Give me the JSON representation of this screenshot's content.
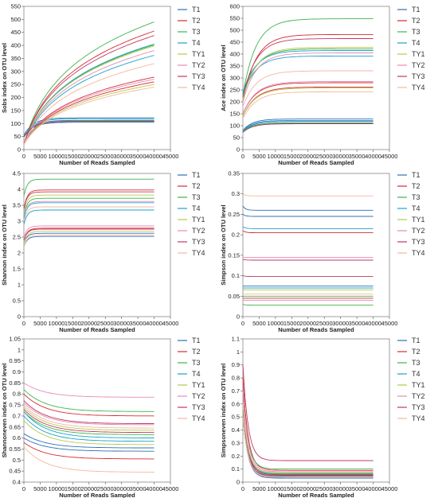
{
  "series_names": [
    "T1",
    "T2",
    "T3",
    "T4",
    "TY1",
    "TY2",
    "TY3",
    "TY4"
  ],
  "series_colors": [
    "#2f6fb5",
    "#d62a33",
    "#3cb54a",
    "#1aa3c8",
    "#b6c94a",
    "#e58ab9",
    "#c0395f",
    "#f4b7a0"
  ],
  "chart_data": [
    {
      "type": "line",
      "xlabel": "Number of Reads Sampled",
      "ylabel": "Sobs index on OTU level",
      "xlim": [
        0,
        45000
      ],
      "ylim": [
        0,
        550
      ],
      "xticks": [
        0,
        5000,
        10000,
        15000,
        20000,
        25000,
        30000,
        35000,
        40000,
        45000
      ],
      "yticks": [
        0,
        50,
        100,
        150,
        200,
        250,
        300,
        350,
        400,
        450,
        500,
        550
      ],
      "x_end": 40000,
      "series": [
        {
          "name": "T1",
          "curves": [
            {
              "start": 55,
              "final": 122,
              "shape": "sat"
            },
            {
              "start": 50,
              "final": 112,
              "shape": "sat"
            },
            {
              "start": 48,
              "final": 105,
              "shape": "sat"
            }
          ]
        },
        {
          "name": "T2",
          "curves": [
            {
              "start": 20,
              "final": 455,
              "shape": "log"
            },
            {
              "start": 20,
              "final": 278,
              "shape": "log"
            },
            {
              "start": 20,
              "final": 260,
              "shape": "log"
            }
          ]
        },
        {
          "name": "T3",
          "curves": [
            {
              "start": 20,
              "final": 490,
              "shape": "log"
            },
            {
              "start": 20,
              "final": 402,
              "shape": "log"
            },
            {
              "start": 20,
              "final": 110,
              "shape": "sat"
            }
          ]
        },
        {
          "name": "T4",
          "curves": [
            {
              "start": 20,
              "final": 405,
              "shape": "log"
            },
            {
              "start": 20,
              "final": 362,
              "shape": "log"
            },
            {
              "start": 48,
              "final": 118,
              "shape": "sat"
            }
          ]
        },
        {
          "name": "TY1",
          "curves": [
            {
              "start": 20,
              "final": 398,
              "shape": "log"
            },
            {
              "start": 20,
              "final": 250,
              "shape": "log"
            }
          ]
        },
        {
          "name": "TY2",
          "curves": [
            {
              "start": 20,
              "final": 380,
              "shape": "log"
            },
            {
              "start": 20,
              "final": 270,
              "shape": "log"
            }
          ]
        },
        {
          "name": "TY3",
          "curves": [
            {
              "start": 20,
              "final": 438,
              "shape": "log"
            },
            {
              "start": 48,
              "final": 108,
              "shape": "sat"
            }
          ]
        },
        {
          "name": "TY4",
          "curves": [
            {
              "start": 20,
              "final": 330,
              "shape": "log"
            },
            {
              "start": 20,
              "final": 240,
              "shape": "log"
            }
          ]
        }
      ]
    },
    {
      "type": "line",
      "xlabel": "Number of Reads Sampled",
      "ylabel": "Ace index on OTU level",
      "xlim": [
        0,
        45000
      ],
      "ylim": [
        0,
        600
      ],
      "xticks": [
        0,
        5000,
        10000,
        15000,
        20000,
        25000,
        30000,
        35000,
        40000,
        45000
      ],
      "yticks": [
        0,
        50,
        100,
        150,
        200,
        250,
        300,
        350,
        400,
        450,
        500,
        550,
        600
      ],
      "x_end": 40000,
      "series": [
        {
          "name": "T1",
          "curves": [
            {
              "start": 80,
              "final": 128,
              "shape": "sat"
            },
            {
              "start": 75,
              "final": 118,
              "shape": "sat"
            },
            {
              "start": 72,
              "final": 110,
              "shape": "sat"
            }
          ]
        },
        {
          "name": "T2",
          "curves": [
            {
              "start": 200,
              "final": 482,
              "shape": "ace"
            },
            {
              "start": 150,
              "final": 280,
              "shape": "ace"
            },
            {
              "start": 140,
              "final": 262,
              "shape": "ace"
            }
          ]
        },
        {
          "name": "T3",
          "curves": [
            {
              "start": 230,
              "final": 548,
              "shape": "ace"
            },
            {
              "start": 220,
              "final": 422,
              "shape": "ace"
            },
            {
              "start": 75,
              "final": 112,
              "shape": "sat"
            }
          ]
        },
        {
          "name": "T4",
          "curves": [
            {
              "start": 240,
              "final": 415,
              "shape": "ace"
            },
            {
              "start": 230,
              "final": 392,
              "shape": "ace"
            },
            {
              "start": 78,
              "final": 122,
              "shape": "sat"
            }
          ]
        },
        {
          "name": "TY1",
          "curves": [
            {
              "start": 210,
              "final": 428,
              "shape": "ace"
            },
            {
              "start": 140,
              "final": 258,
              "shape": "ace"
            }
          ]
        },
        {
          "name": "TY2",
          "curves": [
            {
              "start": 200,
              "final": 405,
              "shape": "ace"
            },
            {
              "start": 150,
              "final": 285,
              "shape": "ace"
            }
          ]
        },
        {
          "name": "TY3",
          "curves": [
            {
              "start": 220,
              "final": 465,
              "shape": "ace"
            },
            {
              "start": 72,
              "final": 108,
              "shape": "sat"
            }
          ]
        },
        {
          "name": "TY4",
          "curves": [
            {
              "start": 180,
              "final": 330,
              "shape": "ace"
            },
            {
              "start": 130,
              "final": 242,
              "shape": "ace"
            }
          ]
        }
      ]
    },
    {
      "type": "line",
      "xlabel": "Number of Reads Sampled",
      "ylabel": "Shannon index on OTU level",
      "xlim": [
        0,
        45000
      ],
      "ylim": [
        0,
        4.5
      ],
      "xticks": [
        0,
        5000,
        10000,
        15000,
        20000,
        25000,
        30000,
        35000,
        40000,
        45000
      ],
      "yticks": [
        0,
        0.5,
        1,
        1.5,
        2,
        2.5,
        3,
        3.5,
        4,
        4.5
      ],
      "x_end": 40000,
      "series": [
        {
          "name": "T1",
          "curves": [
            {
              "start": 2.2,
              "final": 2.52,
              "shape": "fast"
            },
            {
              "start": 2.3,
              "final": 2.62,
              "shape": "fast"
            }
          ]
        },
        {
          "name": "T2",
          "curves": [
            {
              "start": 3.4,
              "final": 3.98,
              "shape": "fast"
            },
            {
              "start": 2.4,
              "final": 2.78,
              "shape": "fast"
            }
          ]
        },
        {
          "name": "T3",
          "curves": [
            {
              "start": 3.8,
              "final": 4.32,
              "shape": "fast"
            },
            {
              "start": 3.2,
              "final": 3.72,
              "shape": "fast"
            }
          ]
        },
        {
          "name": "T4",
          "curves": [
            {
              "start": 3.1,
              "final": 3.58,
              "shape": "fast"
            },
            {
              "start": 2.9,
              "final": 3.35,
              "shape": "fast"
            }
          ]
        },
        {
          "name": "TY1",
          "curves": [
            {
              "start": 3.3,
              "final": 3.82,
              "shape": "fast"
            },
            {
              "start": 2.3,
              "final": 2.68,
              "shape": "fast"
            }
          ]
        },
        {
          "name": "TY2",
          "curves": [
            {
              "start": 3.2,
              "final": 3.62,
              "shape": "fast"
            },
            {
              "start": 2.5,
              "final": 2.85,
              "shape": "fast"
            }
          ]
        },
        {
          "name": "TY3",
          "curves": [
            {
              "start": 3.4,
              "final": 3.92,
              "shape": "fast"
            },
            {
              "start": 2.4,
              "final": 2.75,
              "shape": "fast"
            }
          ]
        },
        {
          "name": "TY4",
          "curves": [
            {
              "start": 3.0,
              "final": 3.45,
              "shape": "fast"
            },
            {
              "start": 2.2,
              "final": 2.56,
              "shape": "fast"
            }
          ]
        }
      ]
    },
    {
      "type": "line",
      "xlabel": "Number of Reads Sampled",
      "ylabel": "Simpson index on OTU level",
      "xlim": [
        0,
        45000
      ],
      "ylim": [
        0,
        0.35
      ],
      "xticks": [
        0,
        5000,
        10000,
        15000,
        20000,
        25000,
        30000,
        35000,
        40000,
        45000
      ],
      "yticks": [
        0,
        0.05,
        0.1,
        0.15,
        0.2,
        0.25,
        0.3,
        0.35
      ],
      "x_end": 40000,
      "series": [
        {
          "name": "T1",
          "curves": [
            {
              "start": 0.27,
              "final": 0.26,
              "shape": "flat"
            },
            {
              "start": 0.25,
              "final": 0.245,
              "shape": "flat"
            },
            {
              "start": 0.075,
              "final": 0.075,
              "shape": "flat"
            }
          ]
        },
        {
          "name": "T2",
          "curves": [
            {
              "start": 0.21,
              "final": 0.205,
              "shape": "flat"
            },
            {
              "start": 0.045,
              "final": 0.045,
              "shape": "flat"
            }
          ]
        },
        {
          "name": "T3",
          "curves": [
            {
              "start": 0.03,
              "final": 0.028,
              "shape": "flat"
            },
            {
              "start": 0.05,
              "final": 0.05,
              "shape": "flat"
            }
          ]
        },
        {
          "name": "T4",
          "curves": [
            {
              "start": 0.22,
              "final": 0.215,
              "shape": "flat"
            },
            {
              "start": 0.07,
              "final": 0.07,
              "shape": "flat"
            }
          ]
        },
        {
          "name": "TY1",
          "curves": [
            {
              "start": 0.065,
              "final": 0.065,
              "shape": "flat"
            }
          ]
        },
        {
          "name": "TY2",
          "curves": [
            {
              "start": 0.145,
              "final": 0.145,
              "shape": "flat"
            },
            {
              "start": 0.04,
              "final": 0.04,
              "shape": "flat"
            }
          ]
        },
        {
          "name": "TY3",
          "curves": [
            {
              "start": 0.1,
              "final": 0.098,
              "shape": "flat"
            },
            {
              "start": 0.14,
              "final": 0.138,
              "shape": "flat"
            }
          ]
        },
        {
          "name": "TY4",
          "curves": [
            {
              "start": 0.3,
              "final": 0.295,
              "shape": "flat"
            },
            {
              "start": 0.055,
              "final": 0.055,
              "shape": "flat"
            }
          ]
        }
      ]
    },
    {
      "type": "line",
      "xlabel": "Number of Reads Sampled",
      "ylabel": "Shannoneven index on OTU level",
      "xlim": [
        0,
        45000
      ],
      "ylim": [
        0.4,
        1.05
      ],
      "xticks": [
        0,
        5000,
        10000,
        15000,
        20000,
        25000,
        30000,
        35000,
        40000,
        45000
      ],
      "yticks": [
        0.4,
        0.45,
        0.5,
        0.55,
        0.6,
        0.65,
        0.7,
        0.75,
        0.8,
        0.85,
        0.9,
        0.95,
        1,
        1.05
      ],
      "x_end": 40000,
      "series": [
        {
          "name": "T1",
          "curves": [
            {
              "start": 0.6,
              "final": 0.54,
              "shape": "decay"
            },
            {
              "start": 0.62,
              "final": 0.555,
              "shape": "decay"
            }
          ]
        },
        {
          "name": "T2",
          "curves": [
            {
              "start": 0.8,
              "final": 0.7,
              "shape": "decay"
            },
            {
              "start": 0.58,
              "final": 0.505,
              "shape": "decay"
            }
          ]
        },
        {
          "name": "T3",
          "curves": [
            {
              "start": 0.82,
              "final": 0.72,
              "shape": "decay"
            },
            {
              "start": 0.72,
              "final": 0.615,
              "shape": "decay"
            }
          ]
        },
        {
          "name": "T4",
          "curves": [
            {
              "start": 0.72,
              "final": 0.6,
              "shape": "decay"
            },
            {
              "start": 0.7,
              "final": 0.585,
              "shape": "decay"
            }
          ]
        },
        {
          "name": "TY1",
          "curves": [
            {
              "start": 0.74,
              "final": 0.635,
              "shape": "decay"
            },
            {
              "start": 0.68,
              "final": 0.57,
              "shape": "decay"
            }
          ]
        },
        {
          "name": "TY2",
          "curves": [
            {
              "start": 0.76,
              "final": 0.66,
              "shape": "decay"
            },
            {
              "start": 0.85,
              "final": 0.785,
              "shape": "decay"
            }
          ]
        },
        {
          "name": "TY3",
          "curves": [
            {
              "start": 0.77,
              "final": 0.665,
              "shape": "decay"
            },
            {
              "start": 0.73,
              "final": 0.625,
              "shape": "decay"
            }
          ]
        },
        {
          "name": "TY4",
          "curves": [
            {
              "start": 0.56,
              "final": 0.445,
              "shape": "decay"
            },
            {
              "start": 0.75,
              "final": 0.645,
              "shape": "decay"
            }
          ]
        }
      ]
    },
    {
      "type": "line",
      "xlabel": "Number of Reads Sampled",
      "ylabel": "Simpsoneven index on OTU level",
      "xlim": [
        0,
        45000
      ],
      "ylim": [
        0,
        1.1
      ],
      "xticks": [
        0,
        5000,
        10000,
        15000,
        20000,
        25000,
        30000,
        35000,
        40000,
        45000
      ],
      "yticks": [
        0,
        0.1,
        0.2,
        0.3,
        0.4,
        0.5,
        0.6,
        0.7,
        0.8,
        0.9,
        1,
        1.1
      ],
      "x_end": 40000,
      "series": [
        {
          "name": "T1",
          "curves": [
            {
              "start": 0.6,
              "final": 0.04,
              "shape": "sdecay"
            },
            {
              "start": 0.5,
              "final": 0.03,
              "shape": "sdecay"
            }
          ]
        },
        {
          "name": "T2",
          "curves": [
            {
              "start": 0.8,
              "final": 0.09,
              "shape": "sdecay"
            },
            {
              "start": 0.5,
              "final": 0.05,
              "shape": "sdecay"
            }
          ]
        },
        {
          "name": "T3",
          "curves": [
            {
              "start": 0.7,
              "final": 0.1,
              "shape": "sdecay"
            },
            {
              "start": 0.55,
              "final": 0.06,
              "shape": "sdecay"
            }
          ]
        },
        {
          "name": "T4",
          "curves": [
            {
              "start": 0.6,
              "final": 0.065,
              "shape": "sdecay"
            },
            {
              "start": 0.5,
              "final": 0.045,
              "shape": "sdecay"
            }
          ]
        },
        {
          "name": "TY1",
          "curves": [
            {
              "start": 0.6,
              "final": 0.07,
              "shape": "sdecay"
            }
          ]
        },
        {
          "name": "TY2",
          "curves": [
            {
              "start": 0.7,
              "final": 0.08,
              "shape": "sdecay"
            },
            {
              "start": 0.5,
              "final": 0.035,
              "shape": "sdecay"
            }
          ]
        },
        {
          "name": "TY3",
          "curves": [
            {
              "start": 0.9,
              "final": 0.165,
              "shape": "sdecay"
            },
            {
              "start": 0.6,
              "final": 0.055,
              "shape": "sdecay"
            }
          ]
        },
        {
          "name": "TY4",
          "curves": [
            {
              "start": 0.6,
              "final": 0.075,
              "shape": "sdecay"
            },
            {
              "start": 0.5,
              "final": 0.04,
              "shape": "sdecay"
            }
          ]
        }
      ]
    }
  ]
}
